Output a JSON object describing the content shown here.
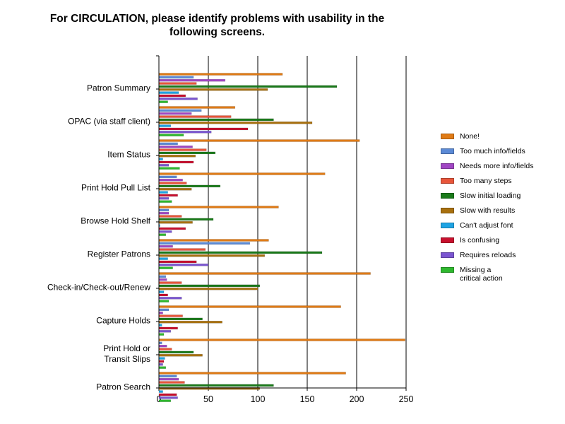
{
  "chart_data": {
    "type": "bar",
    "orientation": "horizontal",
    "title": "For CIRCULATION, please identify problems with usability in the following screens.",
    "xlabel": "",
    "ylabel": "",
    "xlim": [
      0,
      250
    ],
    "xticks": [
      0,
      50,
      100,
      150,
      200,
      250
    ],
    "grid": true,
    "legend_position": "right",
    "categories": [
      "Patron Summary",
      "OPAC (via staff client)",
      "Item Status",
      "Print Hold Pull List",
      "Browse Hold Shelf",
      "Register Patrons",
      "Check-in/Check-out/Renew",
      "Capture Holds",
      "Print Hold or\nTransit Slips",
      "Patron Search"
    ],
    "series": [
      {
        "name": "None!",
        "color": "#e07b16",
        "values": [
          125,
          77,
          203,
          168,
          121,
          111,
          214,
          184,
          249,
          189
        ]
      },
      {
        "name": "Too much info/fields",
        "color": "#5b8ad6",
        "values": [
          35,
          43,
          19,
          18,
          10,
          92,
          7,
          10,
          3,
          18
        ]
      },
      {
        "name": "Needs more info/fields",
        "color": "#a046c3",
        "values": [
          67,
          33,
          34,
          24,
          10,
          14,
          8,
          4,
          8,
          20
        ]
      },
      {
        "name": "Too many steps",
        "color": "#e8553a",
        "values": [
          38,
          73,
          48,
          28,
          23,
          47,
          23,
          24,
          13,
          26
        ]
      },
      {
        "name": "Slow initial loading",
        "color": "#1a7a1a",
        "values": [
          180,
          116,
          57,
          62,
          55,
          165,
          102,
          44,
          35,
          116
        ]
      },
      {
        "name": "Slow with results",
        "color": "#a8700e",
        "values": [
          110,
          155,
          37,
          33,
          34,
          107,
          100,
          64,
          44,
          102
        ]
      },
      {
        "name": "Can't adjust font",
        "color": "#1ea3e3",
        "values": [
          20,
          12,
          4,
          9,
          1,
          9,
          5,
          3,
          6,
          4
        ]
      },
      {
        "name": "Is confusing",
        "color": "#c8102e",
        "values": [
          27,
          90,
          35,
          19,
          27,
          38,
          9,
          19,
          5,
          18
        ]
      },
      {
        "name": "Requires reloads",
        "color": "#7a55d0",
        "values": [
          39,
          53,
          10,
          10,
          13,
          50,
          23,
          12,
          4,
          19
        ]
      },
      {
        "name": "Missing a\ncritical action",
        "color": "#2eb82e",
        "values": [
          9,
          25,
          21,
          13,
          7,
          14,
          10,
          5,
          7,
          12
        ]
      }
    ]
  }
}
